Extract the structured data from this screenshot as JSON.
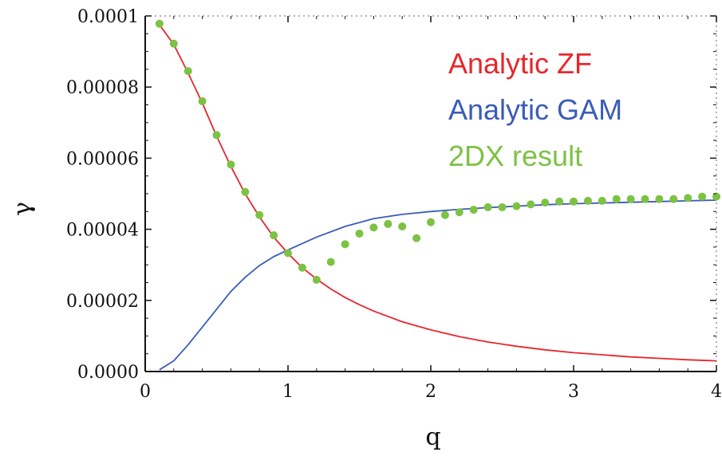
{
  "chart_data": {
    "type": "line",
    "xlabel": "q",
    "ylabel": "γ",
    "xlim": [
      0,
      4
    ],
    "ylim": [
      0,
      0.0001
    ],
    "xticks": [
      0,
      1,
      2,
      3,
      4
    ],
    "xtick_labels": [
      "0",
      "1",
      "2",
      "3",
      "4"
    ],
    "yticks": [
      0,
      2e-05,
      4e-05,
      6e-05,
      8e-05,
      0.0001
    ],
    "ytick_labels": [
      "0.0000",
      "0.00002",
      "0.00004",
      "0.00006",
      "0.00008",
      "0.0001"
    ],
    "legend_position": "top-right",
    "grid": false,
    "series": [
      {
        "name": "Analytic ZF",
        "kind": "line",
        "color": "#e8262c",
        "x": [
          0.1,
          0.2,
          0.3,
          0.4,
          0.5,
          0.6,
          0.7,
          0.8,
          0.9,
          1.0,
          1.1,
          1.2,
          1.3,
          1.4,
          1.5,
          1.6,
          1.8,
          2.0,
          2.2,
          2.4,
          2.6,
          2.8,
          3.0,
          3.2,
          3.4,
          3.6,
          3.8,
          4.0
        ],
        "values": [
          9.75e-05,
          9.2e-05,
          8.4e-05,
          7.55e-05,
          6.62e-05,
          5.77e-05,
          5e-05,
          4.35e-05,
          3.78e-05,
          3.32e-05,
          2.92e-05,
          2.6e-05,
          2.32e-05,
          2.08e-05,
          1.88e-05,
          1.7e-05,
          1.4e-05,
          1.17e-05,
          9.8e-06,
          8.3e-06,
          7.1e-06,
          6.1e-06,
          5.3e-06,
          4.7e-06,
          4.1e-06,
          3.7e-06,
          3.3e-06,
          3e-06
        ]
      },
      {
        "name": "Analytic GAM",
        "kind": "line",
        "color": "#3a5cb8",
        "x": [
          0.1,
          0.2,
          0.3,
          0.4,
          0.5,
          0.6,
          0.7,
          0.8,
          0.9,
          1.0,
          1.2,
          1.4,
          1.6,
          1.8,
          2.0,
          2.2,
          2.4,
          2.6,
          2.8,
          3.0,
          3.2,
          3.4,
          3.6,
          3.8,
          4.0
        ],
        "values": [
          5e-07,
          3e-06,
          7.5e-06,
          1.25e-05,
          1.75e-05,
          2.25e-05,
          2.65e-05,
          2.98e-05,
          3.23e-05,
          3.42e-05,
          3.78e-05,
          4.08e-05,
          4.3e-05,
          4.42e-05,
          4.5e-05,
          4.56e-05,
          4.61e-05,
          4.65e-05,
          4.69e-05,
          4.72e-05,
          4.74e-05,
          4.76e-05,
          4.78e-05,
          4.8e-05,
          4.82e-05
        ]
      },
      {
        "name": "2DX result",
        "kind": "scatter",
        "color": "#7cc243",
        "x": [
          0.1,
          0.2,
          0.3,
          0.4,
          0.5,
          0.6,
          0.7,
          0.8,
          0.9,
          1.0,
          1.1,
          1.2,
          1.3,
          1.4,
          1.5,
          1.6,
          1.7,
          1.8,
          1.9,
          2.0,
          2.1,
          2.2,
          2.3,
          2.4,
          2.5,
          2.6,
          2.7,
          2.8,
          2.9,
          3.0,
          3.1,
          3.2,
          3.3,
          3.4,
          3.5,
          3.6,
          3.7,
          3.8,
          3.9,
          4.0
        ],
        "values": [
          9.78e-05,
          9.22e-05,
          8.45e-05,
          7.6e-05,
          6.65e-05,
          5.82e-05,
          5.05e-05,
          4.4e-05,
          3.83e-05,
          3.33e-05,
          2.92e-05,
          2.58e-05,
          3.08e-05,
          3.58e-05,
          3.88e-05,
          4.05e-05,
          4.15e-05,
          4.08e-05,
          3.75e-05,
          4.2e-05,
          4.4e-05,
          4.48e-05,
          4.55e-05,
          4.62e-05,
          4.62e-05,
          4.65e-05,
          4.7e-05,
          4.75e-05,
          4.78e-05,
          4.78e-05,
          4.8e-05,
          4.8e-05,
          4.85e-05,
          4.85e-05,
          4.85e-05,
          4.85e-05,
          4.85e-05,
          4.88e-05,
          4.92e-05,
          4.92e-05
        ]
      }
    ]
  }
}
